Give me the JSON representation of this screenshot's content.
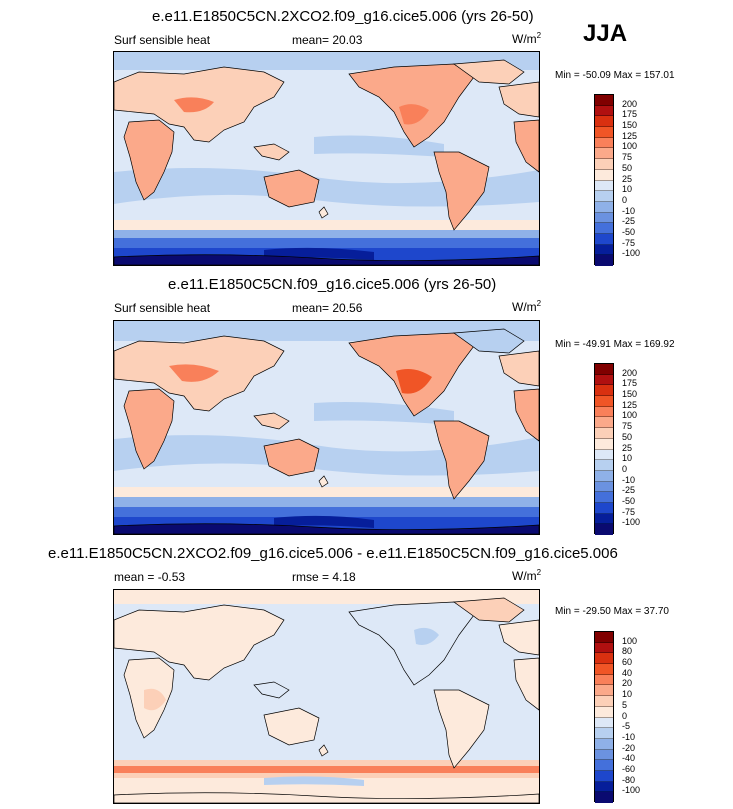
{
  "season": "JJA",
  "field_label": "Surf sensible heat",
  "panels": [
    {
      "title": "e.e11.E1850C5CN.2XCO2.f09_g16.cice5.006 (yrs 26-50)",
      "left_label": "Surf sensible heat",
      "stat_label": "mean=",
      "stat_value": "20.03",
      "units": "W/m",
      "units_exp": "2",
      "minmax": "Min = -50.09 Max = 157.01",
      "colorbar_ticks": [
        "200",
        "175",
        "150",
        "125",
        "100",
        "75",
        "50",
        "25",
        "10",
        "0",
        "-10",
        "-25",
        "-50",
        "-75",
        "-100"
      ]
    },
    {
      "title": "e.e11.E1850C5CN.f09_g16.cice5.006 (yrs 26-50)",
      "left_label": "Surf sensible heat",
      "stat_label": "mean=",
      "stat_value": "20.56",
      "units": "W/m",
      "units_exp": "2",
      "minmax": "Min = -49.91 Max = 169.92",
      "colorbar_ticks": [
        "200",
        "175",
        "150",
        "125",
        "100",
        "75",
        "50",
        "25",
        "10",
        "0",
        "-10",
        "-25",
        "-50",
        "-75",
        "-100"
      ]
    },
    {
      "title": "e.e11.E1850C5CN.2XCO2.f09_g16.cice5.006 - e.e11.E1850C5CN.f09_g16.cice5.006",
      "left_label": "mean =  -0.53",
      "stat_label": "rmse =",
      "stat_value": "4.18",
      "units": "W/m",
      "units_exp": "2",
      "minmax": "Min = -29.50 Max =  37.70",
      "colorbar_ticks": [
        "100",
        "80",
        "60",
        "40",
        "20",
        "10",
        "5",
        "0",
        "-5",
        "-10",
        "-20",
        "-40",
        "-60",
        "-80",
        "-100"
      ]
    }
  ],
  "colors": {
    "abs_scale": [
      "#800000",
      "#b01010",
      "#d93010",
      "#f05526",
      "#f9805a",
      "#fba98a",
      "#fcd0b8",
      "#fdeadc",
      "#dde8f7",
      "#b7d0f0",
      "#8fb1e8",
      "#6b92e0",
      "#4470db",
      "#1e47cc",
      "#061e9a",
      "#0a0a70"
    ],
    "diff_scale": [
      "#800000",
      "#b01010",
      "#d93010",
      "#f05526",
      "#f9805a",
      "#fba98a",
      "#fcd0b8",
      "#fdeadc",
      "#dde8f7",
      "#b7d0f0",
      "#8fb1e8",
      "#6b92e0",
      "#4470db",
      "#1e47cc",
      "#061e9a",
      "#0a0a70"
    ]
  }
}
